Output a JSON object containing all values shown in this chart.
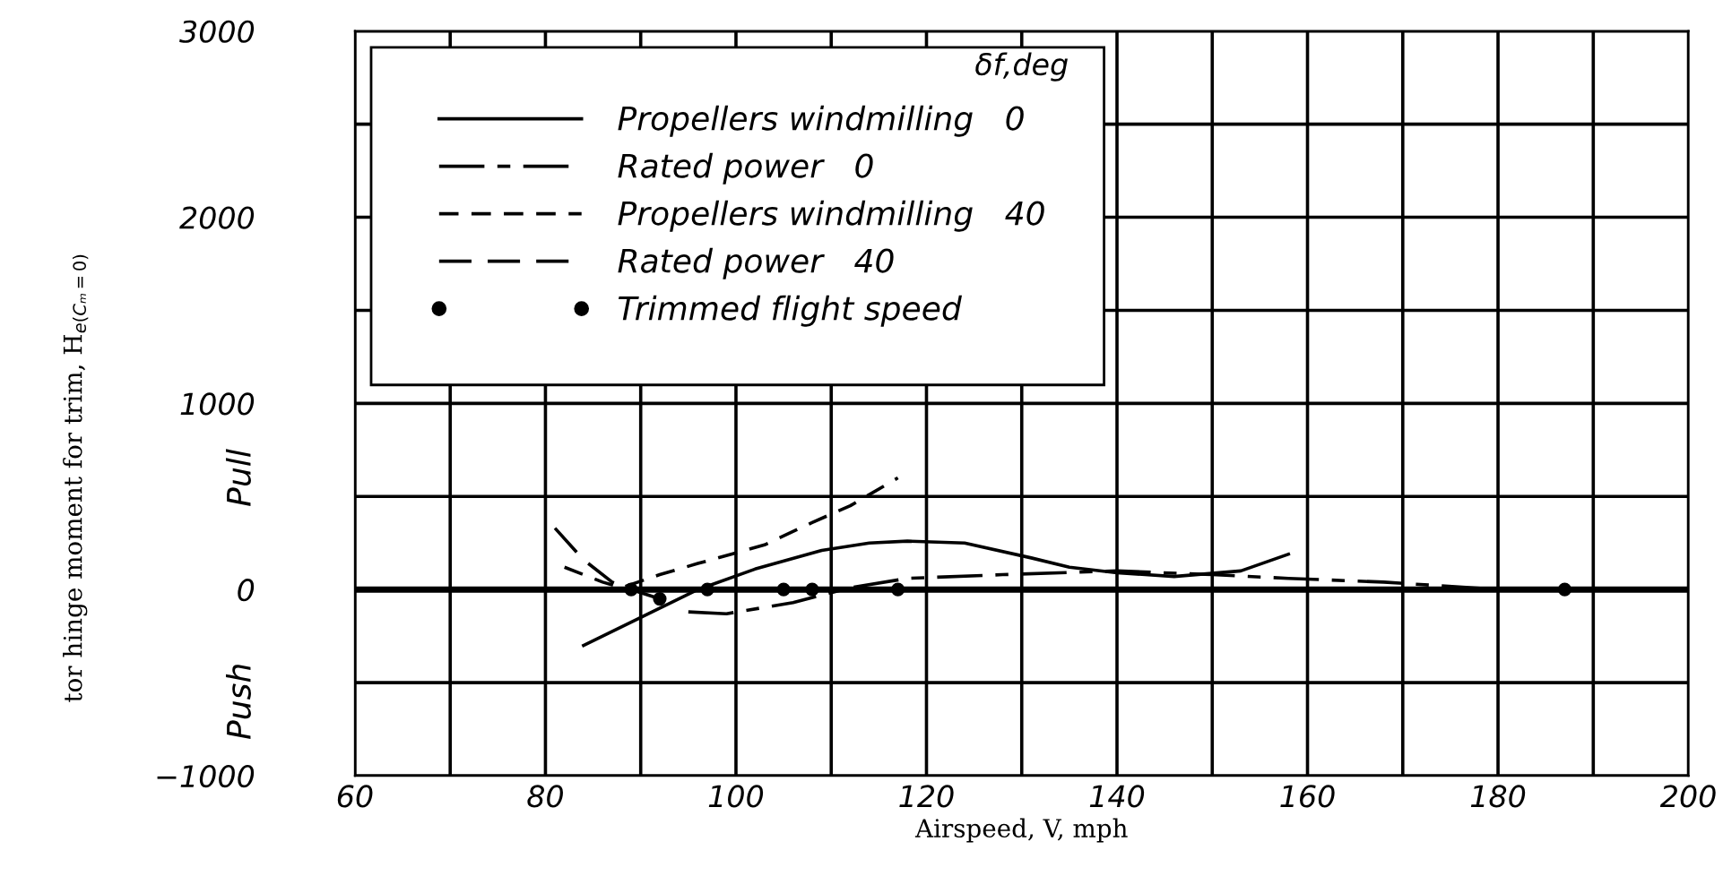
{
  "chart_data": {
    "type": "line",
    "xlabel": "Airspeed, V, mph",
    "ylabel": "tor hinge moment for trim, H$_{e(Cₘ=0)}$",
    "legend_title": "δf,deg",
    "legend": "top left",
    "grid": true,
    "xlim": [
      60,
      200
    ],
    "xticks": [
      60,
      {
        "value": 70,
        "label": null
      },
      80,
      {
        "value": 90,
        "label": null
      },
      100,
      {
        "value": 110,
        "label": null
      },
      120,
      {
        "value": 130,
        "label": null
      },
      140,
      {
        "value": 150,
        "label": null
      },
      160,
      {
        "value": 170,
        "label": null
      },
      180,
      {
        "value": 190,
        "label": null
      },
      200
    ],
    "ylim": [
      -1000,
      3000
    ],
    "yticks": [
      {
        "value": -1000,
        "label": "−1000"
      },
      {
        "value": -500,
        "label": null
      },
      0,
      {
        "value": 500,
        "label": null
      },
      1000,
      {
        "value": 1500,
        "label": null
      },
      2000,
      {
        "value": 2500,
        "label": null
      },
      3000
    ],
    "ref_lines": [
      {
        "axis": "y",
        "value": 0,
        "label": null,
        "color": "#000000"
      }
    ],
    "annotations": [
      "Pull",
      "Push"
    ],
    "series": [
      {
        "name": "Propellers windmilling   0",
        "line_style": "solid",
        "color": "#000000",
        "x": [
          84,
          90,
          96,
          102,
          109,
          114,
          118,
          124,
          131,
          135,
          140,
          146,
          153,
          158
        ],
        "values": [
          -300,
          -150,
          0,
          110,
          210,
          250,
          260,
          250,
          170,
          120,
          90,
          70,
          100,
          190
        ]
      },
      {
        "name": "Rated power   0",
        "line_style": "dashdot",
        "color": "#000000",
        "x": [
          95,
          99,
          106,
          112,
          118,
          128,
          140,
          150,
          158,
          168,
          174,
          180
        ],
        "values": [
          -120,
          -130,
          -70,
          10,
          60,
          80,
          100,
          80,
          60,
          40,
          20,
          0
        ]
      },
      {
        "name": "Propellers windmilling   40",
        "line_style": "dashed",
        "color": "#000000",
        "x": [
          82,
          86,
          88,
          92,
          96,
          103,
          108,
          112,
          117
        ],
        "values": [
          120,
          40,
          10,
          80,
          140,
          240,
          360,
          450,
          600
        ]
      },
      {
        "name": "Rated power   40",
        "line_style": "longdash",
        "color": "#000000",
        "x": [
          81,
          84,
          87,
          89,
          92
        ],
        "values": [
          330,
          160,
          40,
          0,
          -50
        ]
      },
      {
        "name": "Trimmed flight speed",
        "type": "scatter",
        "marker": "circle",
        "color": "#000000",
        "x": [
          89,
          92,
          97,
          105,
          108,
          117,
          187
        ],
        "values": [
          0,
          -50,
          0,
          0,
          0,
          0,
          0
        ]
      }
    ]
  }
}
